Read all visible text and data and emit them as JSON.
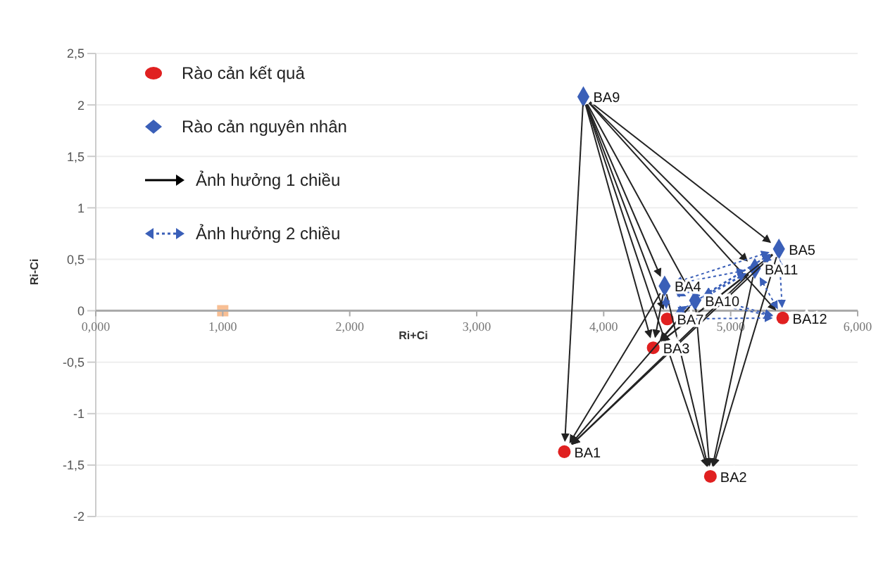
{
  "chart_data": {
    "type": "scatter",
    "xlabel": "Ri+Ci",
    "ylabel": "Ri-Ci",
    "xlim": [
      0,
      6
    ],
    "xticks": [
      {
        "value": 0,
        "label": "0,000"
      },
      {
        "value": 1,
        "label": "1,000"
      },
      {
        "value": 2,
        "label": "2,000"
      },
      {
        "value": 3,
        "label": "3,000"
      },
      {
        "value": 4,
        "label": "4,000"
      },
      {
        "value": 5,
        "label": "5,000"
      },
      {
        "value": 6,
        "label": "6,000"
      }
    ],
    "ylim": [
      -2,
      2.5
    ],
    "yticks": [
      {
        "value": -2,
        "label": "-2"
      },
      {
        "value": -1.5,
        "label": "-1,5"
      },
      {
        "value": -1,
        "label": "-1"
      },
      {
        "value": -0.5,
        "label": "-0,5"
      },
      {
        "value": 0,
        "label": "0"
      },
      {
        "value": 0.5,
        "label": "0,5"
      },
      {
        "value": 1,
        "label": "1"
      },
      {
        "value": 1.5,
        "label": "1,5"
      },
      {
        "value": 2,
        "label": "2"
      },
      {
        "value": 2.5,
        "label": "2,5"
      }
    ],
    "grid": "y",
    "legend": "top left",
    "series": [
      {
        "name": "Rào cản kết quả",
        "color": "#e02020",
        "marker": "circle",
        "x": [
          4.5,
          5.41,
          4.39,
          3.69,
          4.84
        ],
        "values": [
          -0.08,
          -0.07,
          -0.36,
          -1.37,
          -1.61
        ],
        "value_labels": [
          "BA7",
          "BA12",
          "BA3",
          "BA1",
          "BA2"
        ]
      },
      {
        "name": "Rào cản nguyên nhân",
        "color": "#3a5fb8",
        "marker": "diamond",
        "x": [
          3.84,
          5.38,
          5.19,
          4.48,
          4.72
        ],
        "values": [
          2.08,
          0.6,
          0.41,
          0.24,
          0.1
        ],
        "value_labels": [
          "BA9",
          "BA5",
          "BA11",
          "BA4",
          "BA10"
        ]
      },
      {
        "color": "#f8bf94",
        "marker": "square",
        "x": [
          1.0
        ],
        "values": [
          0
        ]
      }
    ],
    "annotations": [
      "Ảnh hưởng 1 chiều",
      "Ảnh hưởng 2 chiều"
    ]
  }
}
